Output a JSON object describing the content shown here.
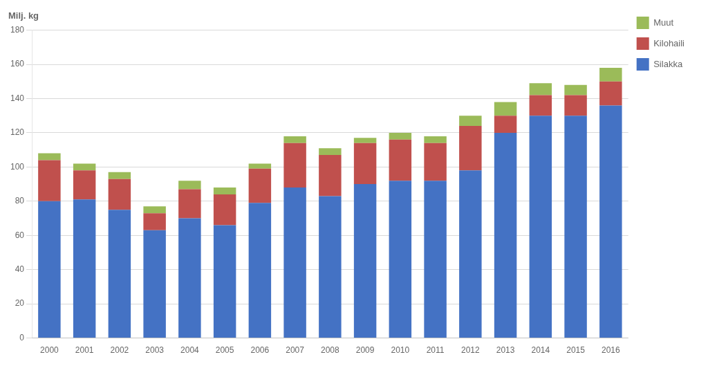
{
  "chart_data": {
    "type": "bar",
    "stacked": true,
    "ylabel": "Milj. kg",
    "categories": [
      "2000",
      "2001",
      "2002",
      "2003",
      "2004",
      "2005",
      "2006",
      "2007",
      "2008",
      "2009",
      "2010",
      "2011",
      "2012",
      "2013",
      "2014",
      "2015",
      "2016"
    ],
    "series": [
      {
        "name": "Silakka",
        "color": "#4472C4",
        "values": [
          80,
          81,
          75,
          63,
          70,
          66,
          79,
          88,
          83,
          90,
          92,
          92,
          98,
          120,
          130,
          130,
          136
        ]
      },
      {
        "name": "Kilohaili",
        "color": "#C0504D",
        "values": [
          24,
          17,
          18,
          10,
          17,
          18,
          20,
          26,
          24,
          24,
          24,
          22,
          26,
          10,
          12,
          12,
          14
        ]
      },
      {
        "name": "Muut",
        "color": "#9BBB59",
        "values": [
          4,
          4,
          4,
          4,
          5,
          4,
          3,
          4,
          4,
          3,
          4,
          4,
          6,
          8,
          7,
          6,
          8
        ]
      }
    ],
    "ylim": [
      0,
      180
    ],
    "yticks": [
      0,
      20,
      40,
      60,
      80,
      100,
      120,
      140,
      160,
      180
    ],
    "grid": true,
    "legend": "right"
  }
}
